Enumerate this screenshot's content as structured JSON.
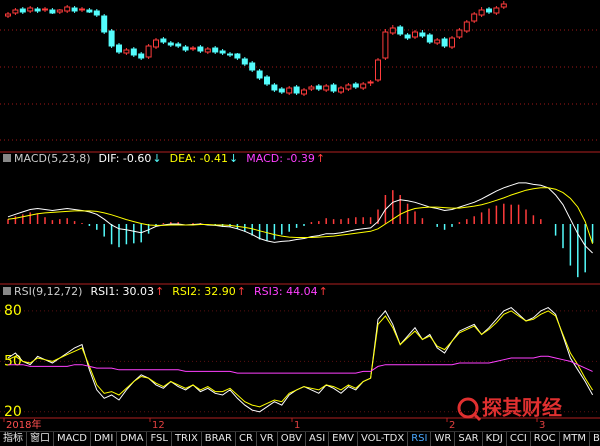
{
  "chart_data": [
    {
      "type": "candlestick",
      "open": [
        134,
        137,
        141,
        139,
        141,
        140,
        140,
        138,
        139,
        142,
        140,
        140,
        139,
        134,
        119,
        105,
        97,
        101,
        96,
        93,
        103,
        111,
        107,
        106,
        103,
        101,
        103,
        98,
        102,
        99,
        96,
        96,
        91,
        87,
        79,
        73,
        65,
        61,
        57,
        63,
        56,
        61,
        64,
        60,
        65,
        58,
        61,
        66,
        62,
        67,
        70,
        92,
        117,
        123,
        115,
        113,
        117,
        115,
        107,
        111,
        103,
        113,
        119,
        129,
        135,
        141,
        137,
        143
      ],
      "high": [
        138,
        142,
        143,
        144,
        143,
        143,
        142,
        141,
        145,
        144,
        143,
        142,
        141,
        136,
        121,
        107,
        102,
        103,
        98,
        106,
        112,
        113,
        109,
        108,
        105,
        104,
        105,
        103,
        104,
        101,
        98,
        97,
        93,
        89,
        81,
        75,
        67,
        63,
        64,
        65,
        62,
        65,
        66,
        66,
        67,
        64,
        67,
        68,
        68,
        70,
        92,
        121,
        125,
        125,
        117,
        120,
        120,
        117,
        112,
        113,
        114,
        122,
        130,
        138,
        143,
        143,
        144,
        149
      ],
      "low": [
        132,
        135,
        136,
        137,
        137,
        138,
        136,
        136,
        137,
        137,
        138,
        137,
        133,
        116,
        102,
        96,
        95,
        93,
        90,
        91,
        101,
        106,
        103,
        102,
        98,
        99,
        97,
        96,
        96,
        95,
        93,
        90,
        84,
        78,
        70,
        64,
        58,
        56,
        55,
        55,
        54,
        59,
        59,
        58,
        57,
        56,
        59,
        61,
        60,
        64,
        68,
        90,
        115,
        114,
        110,
        111,
        112,
        106,
        105,
        102,
        101,
        111,
        117,
        127,
        133,
        136,
        135,
        141
      ],
      "close": [
        136,
        140,
        138,
        142,
        139,
        141,
        137,
        140,
        143,
        139,
        141,
        138,
        135,
        118,
        104,
        98,
        100,
        95,
        92,
        104,
        110,
        108,
        105,
        104,
        100,
        102,
        99,
        101,
        98,
        97,
        95,
        92,
        86,
        80,
        72,
        66,
        60,
        58,
        62,
        57,
        60,
        63,
        61,
        64,
        59,
        62,
        65,
        63,
        66,
        68,
        90,
        118,
        122,
        116,
        112,
        118,
        114,
        108,
        110,
        104,
        112,
        120,
        128,
        136,
        140,
        138,
        142,
        146
      ],
      "ylim": [
        0,
        150
      ],
      "up_color": "#ff3c3c",
      "down_color": "#54fcfc"
    },
    {
      "type": "macd",
      "title": "MACD(5,23,8)",
      "ylim": [
        -1.2,
        1.2
      ],
      "series": [
        {
          "label": "DIF: -0.60",
          "arrow": "↓",
          "arrow_color": "#54fcfc",
          "color": "#ffffff",
          "kind": "line",
          "values": [
            0.15,
            0.2,
            0.25,
            0.3,
            0.32,
            0.3,
            0.28,
            0.3,
            0.32,
            0.3,
            0.28,
            0.25,
            0.2,
            0.1,
            -0.02,
            -0.1,
            -0.12,
            -0.15,
            -0.18,
            -0.12,
            -0.05,
            -0.02,
            0,
            0,
            -0.02,
            -0.01,
            0,
            -0.02,
            -0.03,
            -0.05,
            -0.06,
            -0.1,
            -0.15,
            -0.22,
            -0.3,
            -0.35,
            -0.38,
            -0.36,
            -0.35,
            -0.32,
            -0.3,
            -0.26,
            -0.24,
            -0.2,
            -0.2,
            -0.18,
            -0.15,
            -0.12,
            -0.1,
            -0.08,
            0.05,
            0.3,
            0.45,
            0.5,
            0.48,
            0.45,
            0.4,
            0.35,
            0.32,
            0.28,
            0.3,
            0.35,
            0.4,
            0.45,
            0.52,
            0.6,
            0.68,
            0.75,
            0.8,
            0.85,
            0.85,
            0.82,
            0.8,
            0.75,
            0.6,
            0.4,
            0.1,
            -0.2,
            -0.45,
            -0.6
          ]
        },
        {
          "label": "DEA: -0.41",
          "arrow": "↓",
          "arrow_color": "#54fcfc",
          "color": "#ffff00",
          "kind": "line",
          "values": [
            0.1,
            0.12,
            0.15,
            0.18,
            0.21,
            0.23,
            0.24,
            0.25,
            0.26,
            0.27,
            0.27,
            0.27,
            0.26,
            0.23,
            0.19,
            0.14,
            0.09,
            0.05,
            0.01,
            -0.02,
            -0.03,
            -0.03,
            -0.02,
            -0.02,
            -0.02,
            -0.02,
            -0.01,
            -0.01,
            -0.02,
            -0.02,
            -0.03,
            -0.05,
            -0.07,
            -0.1,
            -0.14,
            -0.18,
            -0.22,
            -0.25,
            -0.27,
            -0.28,
            -0.28,
            -0.28,
            -0.27,
            -0.26,
            -0.25,
            -0.23,
            -0.21,
            -0.19,
            -0.17,
            -0.15,
            -0.1,
            0,
            0.1,
            0.2,
            0.27,
            0.32,
            0.34,
            0.35,
            0.35,
            0.34,
            0.33,
            0.33,
            0.35,
            0.37,
            0.4,
            0.44,
            0.49,
            0.54,
            0.6,
            0.65,
            0.7,
            0.73,
            0.75,
            0.75,
            0.72,
            0.65,
            0.53,
            0.35,
            0.05,
            -0.41
          ]
        },
        {
          "label": "MACD: -0.39",
          "arrow": "↑",
          "arrow_color": "#ff3c3c",
          "color": "#ff40ff",
          "kind": "bar",
          "up_color": "#ff3c3c",
          "down_color": "#54fcfc",
          "values": [
            0.1,
            0.16,
            0.2,
            0.24,
            0.22,
            0.14,
            0.08,
            0.1,
            0.12,
            0.06,
            0.02,
            -0.04,
            -0.12,
            -0.26,
            -0.42,
            -0.48,
            -0.42,
            -0.4,
            -0.38,
            -0.2,
            -0.04,
            0.02,
            0.04,
            0.04,
            0,
            0.02,
            0.02,
            -0.02,
            -0.02,
            -0.06,
            -0.06,
            -0.1,
            -0.16,
            -0.24,
            -0.32,
            -0.34,
            -0.32,
            -0.22,
            -0.16,
            -0.08,
            -0.04,
            0.04,
            0.06,
            0.12,
            0.1,
            0.1,
            0.12,
            0.14,
            0.14,
            0.14,
            0.3,
            0.6,
            0.7,
            0.6,
            0.42,
            0.26,
            0.12,
            0,
            -0.06,
            -0.12,
            -0.06,
            0.04,
            0.1,
            0.16,
            0.24,
            0.32,
            0.38,
            0.42,
            0.4,
            0.4,
            0.3,
            0.18,
            0.1,
            0,
            -0.24,
            -0.5,
            -0.86,
            -1.1,
            -1.0,
            -0.39
          ]
        }
      ]
    },
    {
      "type": "rsi",
      "title": "RSI(9,12,72)",
      "ylim": [
        17.5,
        86.5
      ],
      "yticks": [
        80,
        50,
        20
      ],
      "tick_color": "#ffff00",
      "grid": true,
      "series": [
        {
          "label": "RSI1: 30.03",
          "arrow": "↑",
          "arrow_color": "#ff3c3c",
          "color": "#ffffff",
          "values": [
            52,
            55,
            50,
            48,
            53,
            51,
            49,
            52,
            55,
            58,
            60,
            45,
            33,
            28,
            30,
            27,
            33,
            38,
            42,
            40,
            36,
            34,
            38,
            35,
            33,
            36,
            32,
            34,
            31,
            30,
            33,
            28,
            24,
            21,
            20,
            23,
            26,
            24,
            30,
            33,
            35,
            33,
            31,
            36,
            34,
            31,
            35,
            33,
            38,
            40,
            75,
            80,
            72,
            60,
            65,
            70,
            63,
            66,
            58,
            55,
            62,
            68,
            70,
            72,
            66,
            70,
            75,
            80,
            82,
            78,
            74,
            76,
            80,
            82,
            78,
            65,
            52,
            45,
            38,
            30.03
          ]
        },
        {
          "label": "RSI2: 32.90",
          "arrow": "↑",
          "arrow_color": "#ff3c3c",
          "color": "#ffff00",
          "values": [
            51,
            53,
            50,
            49,
            52,
            51,
            50,
            52,
            54,
            56,
            58,
            47,
            36,
            31,
            32,
            30,
            34,
            38,
            41,
            40,
            37,
            35,
            38,
            36,
            34,
            36,
            33,
            35,
            32,
            32,
            34,
            30,
            26,
            24,
            23,
            25,
            27,
            26,
            31,
            33,
            35,
            34,
            33,
            36,
            35,
            33,
            36,
            34,
            38,
            40,
            72,
            77,
            70,
            60,
            64,
            68,
            63,
            65,
            59,
            57,
            62,
            67,
            69,
            71,
            66,
            69,
            73,
            78,
            80,
            77,
            74,
            75,
            78,
            80,
            77,
            66,
            55,
            48,
            40,
            32.9
          ]
        },
        {
          "label": "RSI3: 44.04",
          "arrow": "↑",
          "arrow_color": "#ff3c3c",
          "color": "#ff40ff",
          "values": [
            48,
            48,
            48,
            47,
            47,
            47,
            47,
            47,
            47,
            48,
            48,
            47,
            46,
            46,
            46,
            45,
            45,
            45,
            45,
            45,
            45,
            45,
            45,
            45,
            44,
            44,
            44,
            44,
            44,
            44,
            44,
            43,
            43,
            43,
            43,
            43,
            43,
            43,
            43,
            43,
            43,
            43,
            43,
            43,
            43,
            43,
            43,
            43,
            44,
            44,
            47,
            48,
            48,
            48,
            48,
            48,
            48,
            48,
            48,
            48,
            48,
            49,
            49,
            49,
            49,
            49,
            50,
            51,
            52,
            52,
            52,
            52,
            53,
            53,
            52,
            51,
            50,
            48,
            46,
            44.04
          ]
        }
      ]
    }
  ],
  "x_labels": [
    "2018年",
    "12",
    "1",
    "2",
    "3"
  ],
  "tabs": [
    "指标",
    "窗口",
    "MACD",
    "DMI",
    "DMA",
    "FSL",
    "TRIX",
    "BRAR",
    "CR",
    "VR",
    "OBV",
    "ASI",
    "EMV",
    "VOL-TDX",
    "RSI",
    "WR",
    "SAR",
    "KDJ",
    "CCI",
    "ROC",
    "MTM",
    "BOLL"
  ],
  "active_tab": 14,
  "watermark": "探其财经"
}
